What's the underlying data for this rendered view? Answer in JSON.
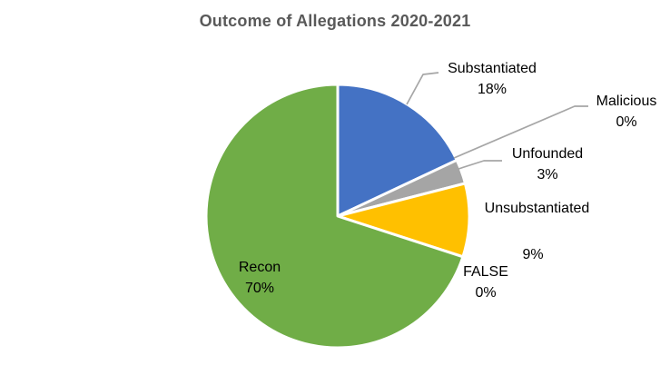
{
  "title": "Outcome of Allegations 2020-2021",
  "colors": {
    "background": "#FFFFFF",
    "title_text": "#595959",
    "label_text": "#000000",
    "leader_line": "#A6A6A6",
    "slice_border": "#FFFFFF"
  },
  "chart_data": {
    "type": "pie",
    "title": "Outcome of Allegations 2020-2021",
    "start_angle_deg": 0,
    "direction": "clockwise",
    "legend": "none",
    "labels_position": "outside-end with category name and percent; leader lines on Substantiated, Malicious and Unfounded",
    "slices": [
      {
        "label": "Substantiated",
        "value": 18,
        "pct_label": "18%",
        "color": "#4472C4"
      },
      {
        "label": "Malicious",
        "value": 0,
        "pct_label": "0%",
        "color": null
      },
      {
        "label": "Unfounded",
        "value": 3,
        "pct_label": "3%",
        "color": "#A5A5A5"
      },
      {
        "label": "Unsubstantiated",
        "value": 9,
        "pct_label": "9%",
        "color": "#FFC000"
      },
      {
        "label": "FALSE",
        "value": 0,
        "pct_label": "0%",
        "color": null
      },
      {
        "label": "Recon",
        "value": 70,
        "pct_label": "70%",
        "color": "#70AD47"
      }
    ]
  }
}
